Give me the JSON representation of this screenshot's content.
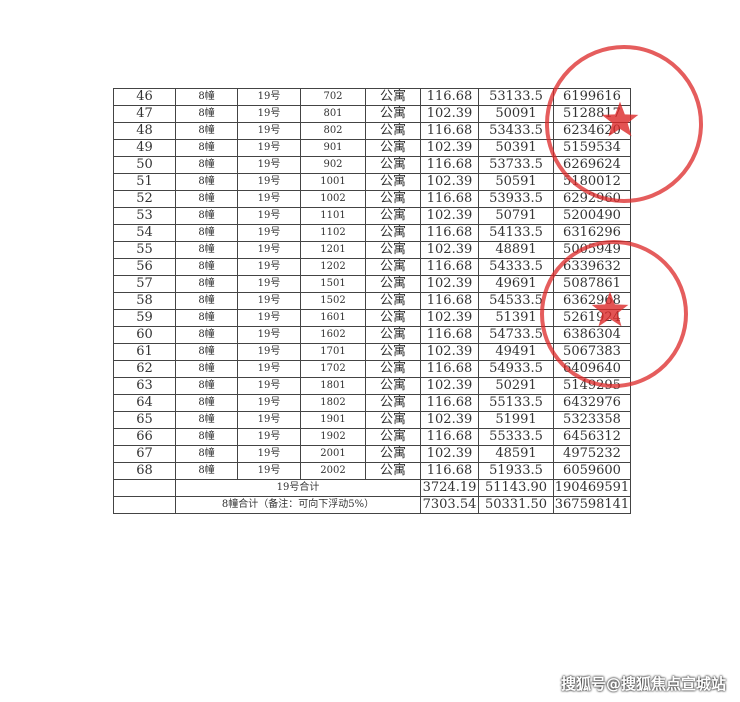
{
  "rows": [
    [
      "46",
      "8幢",
      "19号",
      "702",
      "公寓",
      "116.68",
      "53133.5",
      "6199616"
    ],
    [
      "47",
      "8幢",
      "19号",
      "801",
      "公寓",
      "102.39",
      "50091",
      "5128817"
    ],
    [
      "48",
      "8幢",
      "19号",
      "802",
      "公寓",
      "116.68",
      "53433.5",
      "6234620"
    ],
    [
      "49",
      "8幢",
      "19号",
      "901",
      "公寓",
      "102.39",
      "50391",
      "5159534"
    ],
    [
      "50",
      "8幢",
      "19号",
      "902",
      "公寓",
      "116.68",
      "53733.5",
      "6269624"
    ],
    [
      "51",
      "8幢",
      "19号",
      "1001",
      "公寓",
      "102.39",
      "50591",
      "5180012"
    ],
    [
      "52",
      "8幢",
      "19号",
      "1002",
      "公寓",
      "116.68",
      "53933.5",
      "6292960"
    ],
    [
      "53",
      "8幢",
      "19号",
      "1101",
      "公寓",
      "102.39",
      "50791",
      "5200490"
    ],
    [
      "54",
      "8幢",
      "19号",
      "1102",
      "公寓",
      "116.68",
      "54133.5",
      "6316296"
    ],
    [
      "55",
      "8幢",
      "19号",
      "1201",
      "公寓",
      "102.39",
      "48891",
      "5005949"
    ],
    [
      "56",
      "8幢",
      "19号",
      "1202",
      "公寓",
      "116.68",
      "54333.5",
      "6339632"
    ],
    [
      "57",
      "8幢",
      "19号",
      "1501",
      "公寓",
      "102.39",
      "49691",
      "5087861"
    ],
    [
      "58",
      "8幢",
      "19号",
      "1502",
      "公寓",
      "116.68",
      "54533.5",
      "6362968"
    ],
    [
      "59",
      "8幢",
      "19号",
      "1601",
      "公寓",
      "102.39",
      "51391",
      "5261924"
    ],
    [
      "60",
      "8幢",
      "19号",
      "1602",
      "公寓",
      "116.68",
      "54733.5",
      "6386304"
    ],
    [
      "61",
      "8幢",
      "19号",
      "1701",
      "公寓",
      "102.39",
      "49491",
      "5067383"
    ],
    [
      "62",
      "8幢",
      "19号",
      "1702",
      "公寓",
      "116.68",
      "54933.5",
      "6409640"
    ],
    [
      "63",
      "8幢",
      "19号",
      "1801",
      "公寓",
      "102.39",
      "50291",
      "5149295"
    ],
    [
      "64",
      "8幢",
      "19号",
      "1802",
      "公寓",
      "116.68",
      "55133.5",
      "6432976"
    ],
    [
      "65",
      "8幢",
      "19号",
      "1901",
      "公寓",
      "102.39",
      "51991",
      "5323358"
    ],
    [
      "66",
      "8幢",
      "19号",
      "1902",
      "公寓",
      "116.68",
      "55333.5",
      "6456312"
    ],
    [
      "67",
      "8幢",
      "19号",
      "2001",
      "公寓",
      "102.39",
      "48591",
      "4975232"
    ],
    [
      "68",
      "8幢",
      "19号",
      "2002",
      "公寓",
      "116.68",
      "51933.5",
      "6059600"
    ]
  ],
  "subtotal": {
    "label": "19号合计",
    "area": "3724.19",
    "price": "51143.90",
    "total": "190469591"
  },
  "grand_total": {
    "label": "8幢合计（备注：可向下浮动5%）",
    "area": "7303.54",
    "price": "50331.50",
    "total": "367598141"
  },
  "watermark": "搜狐号@搜狐焦点宣城站",
  "stamp_color": "#dc2828"
}
